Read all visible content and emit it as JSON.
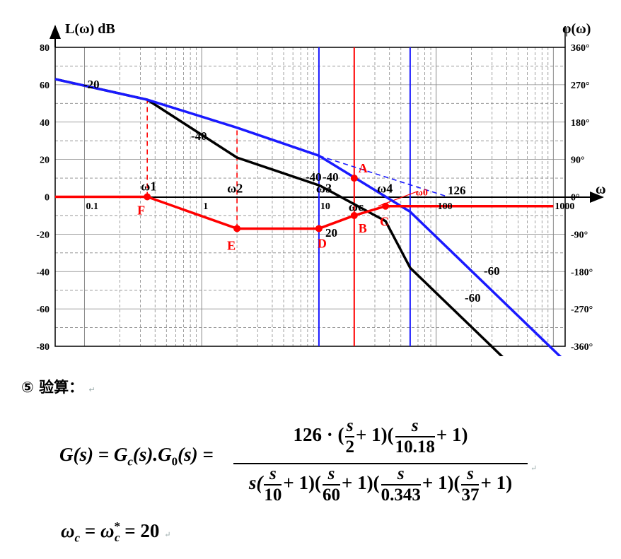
{
  "axes": {
    "y_left_title": "L(ω)  dB",
    "y_right_title": "φ(ω)",
    "x_title": "ω",
    "y_left_ticks": [
      "80",
      "60",
      "40",
      "20",
      "0",
      "-20",
      "-40",
      "-60",
      "-80"
    ],
    "y_right_ticks": [
      "360°",
      "270°",
      "180°",
      "90°",
      "0°",
      "-90°",
      "-180°",
      "-270°",
      "-360°"
    ],
    "x_ticks": [
      "0.1",
      "1",
      "10",
      "100",
      "1000"
    ]
  },
  "points": {
    "w1": "ω1",
    "w2": "ω2",
    "w3": "ω3",
    "w4": "ω4",
    "wc": "ωc",
    "w0": "ω0",
    "A": "A",
    "B": "B",
    "C": "C",
    "D": "D",
    "E": "E",
    "F": "F"
  },
  "slopes": {
    "s1": "-20",
    "s2": "-40",
    "s3": "-40",
    "s4": "-40",
    "s5": "20",
    "s6": "-60",
    "s7": "-60",
    "s8": "126"
  },
  "colors": {
    "black": "#000000",
    "blue": "#1a1aff",
    "red": "#ff0000",
    "grid": "#888888"
  },
  "chart_data": {
    "type": "line",
    "x_scale": "log",
    "xlim": [
      0.0562,
      1260
    ],
    "ylim": [
      -80,
      80
    ],
    "grid": true,
    "series": [
      {
        "color": "black",
        "x": [
          0.0562,
          0.343,
          2,
          10.18,
          37,
          60,
          1260
        ],
        "y": [
          63,
          52,
          21,
          6,
          -13,
          -38,
          -118
        ]
      },
      {
        "color": "blue",
        "x": [
          0.0562,
          0.343,
          2,
          10,
          60,
          1260
        ],
        "y": [
          63,
          52,
          37,
          22,
          -8,
          -88
        ]
      },
      {
        "color": "red",
        "x": [
          0.0562,
          0.343,
          2,
          10,
          20,
          37,
          60,
          1000
        ],
        "y": [
          0,
          0,
          -17,
          -17,
          -10,
          -5,
          -5,
          -5
        ]
      }
    ],
    "verticals": [
      {
        "color": "blue",
        "x": 10
      },
      {
        "color": "red",
        "x": 20
      },
      {
        "color": "blue",
        "x": 60
      }
    ],
    "guides": [
      {
        "style": "red-dashed",
        "x": [
          0.343,
          0.343
        ],
        "y": [
          0,
          52
        ]
      },
      {
        "style": "red-dashed",
        "x": [
          2,
          2
        ],
        "y": [
          -17,
          37
        ]
      },
      {
        "style": "blue-dashed",
        "x": [
          10,
          126
        ],
        "y": [
          22,
          0
        ]
      },
      {
        "style": "red-thin",
        "x": [
          32,
          70
        ],
        "y": [
          -5,
          3
        ]
      }
    ]
  },
  "section": {
    "marker": "⑤",
    "title": "验算：",
    "pilcrow": "↵"
  },
  "formula": {
    "lhs": "G(s) = G",
    "lhs_sub": "c",
    "lhs_mid": "(s).G",
    "lhs_sub2": "0",
    "lhs_end": "(s) =",
    "num_prefix": "126 · (",
    "num_frac1_top": "s",
    "num_frac1_bot": "2",
    "num_mid": "+ 1)(",
    "num_frac2_top": "s",
    "num_frac2_bot": "10.18",
    "num_end": "+ 1)",
    "den_prefix": "s(",
    "den_f1_top": "s",
    "den_f1_bot": "10",
    "den_p1": "+ 1)(",
    "den_f2_top": "s",
    "den_f2_bot": "60",
    "den_p2": "+ 1)(",
    "den_f3_top": "s",
    "den_f3_bot": "0.343",
    "den_p3": "+ 1)(",
    "den_f4_top": "s",
    "den_f4_bot": "37",
    "den_p4": "+ 1)",
    "pilcrow": "↵"
  },
  "wc_line": {
    "w": "ω",
    "sub": "c",
    "eq": " = ",
    "w2": "ω",
    "sub2": "c",
    "star": "*",
    "val": " = 20",
    "pilcrow": "↵"
  }
}
